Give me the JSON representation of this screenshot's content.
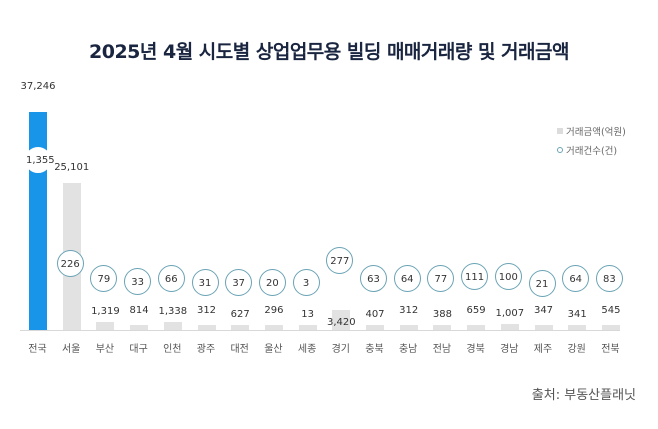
{
  "title": "2025년 4월 시도별 상업업무용 빌딩 매매거래량 및 거래금액",
  "legend": {
    "amount_label": "거래금액(억원)",
    "count_label": "거래건수(건)"
  },
  "source": "출처: 부동산플래닛",
  "colors": {
    "highlight_bar": "#1894e8",
    "bar": "#e2e2e2",
    "circle_border": "#6aa3b5",
    "title": "#1a2540"
  },
  "chart_data": {
    "type": "bar",
    "title": "2025년 4월 시도별 상업업무용 빌딩 매매거래량 및 거래금액",
    "categories": [
      "전국",
      "서울",
      "부산",
      "대구",
      "인천",
      "광주",
      "대전",
      "울산",
      "세종",
      "경기",
      "충북",
      "충남",
      "전남",
      "경북",
      "경남",
      "제주",
      "강원",
      "전북"
    ],
    "series": [
      {
        "name": "거래금액(억원)",
        "type": "bar",
        "values": [
          37246,
          25101,
          1319,
          814,
          1338,
          312,
          627,
          296,
          13,
          3420,
          407,
          312,
          388,
          659,
          1007,
          347,
          341,
          545
        ]
      },
      {
        "name": "거래건수(건)",
        "type": "bubble-label",
        "values": [
          1355,
          226,
          79,
          33,
          66,
          31,
          37,
          20,
          3,
          277,
          63,
          64,
          77,
          111,
          100,
          21,
          64,
          83
        ]
      }
    ],
    "labels_amount": [
      "37,246",
      "25,101",
      "1,319",
      "814",
      "1,338",
      "312",
      "627",
      "296",
      "13",
      "3,420",
      "407",
      "312",
      "388",
      "659",
      "1,007",
      "347",
      "341",
      "545"
    ],
    "labels_count": [
      "1,355",
      "226",
      "79",
      "33",
      "66",
      "31",
      "37",
      "20",
      "3",
      "277",
      "63",
      "64",
      "77",
      "111",
      "100",
      "21",
      "64",
      "83"
    ],
    "highlight_category": "전국",
    "xlabel": "",
    "ylabel": "",
    "grid": false,
    "legend_position": "top-right"
  }
}
